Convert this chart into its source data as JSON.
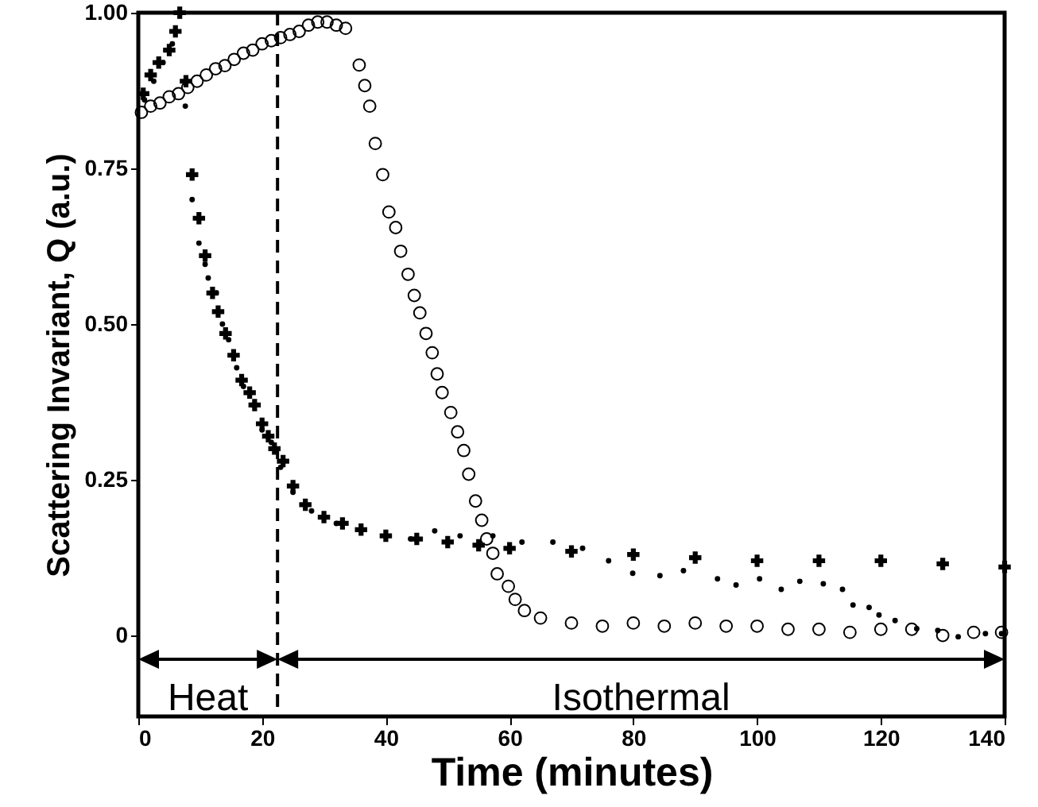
{
  "chart_data": {
    "type": "scatter",
    "xlabel": "Time (minutes)",
    "ylabel": "Scattering Invariant, Q (a.u.)",
    "xlim": [
      0,
      140
    ],
    "ylim": [
      -0.13,
      1.0
    ],
    "xticks": [
      0,
      20,
      40,
      60,
      80,
      100,
      120,
      140
    ],
    "yticks": [
      0,
      0.25,
      {
        "value": 0.5,
        "label": "0.50"
      },
      0.75,
      {
        "value": 1.0,
        "label": "1.00"
      }
    ],
    "grid": false,
    "series": [
      {
        "color": "#000000",
        "marker": "circle",
        "x": [
          0.5,
          2,
          3.5,
          5,
          6.5,
          8,
          9.5,
          11,
          12.5,
          14,
          15.5,
          17,
          18.5,
          20,
          21.5,
          23,
          24.5,
          26,
          27.5,
          29,
          30.5,
          32,
          33.5,
          35.7,
          36.6,
          37.4,
          38.3,
          39.5,
          40.5,
          41.6,
          42.4,
          43.6,
          44.6,
          45.5,
          46.5,
          47.5,
          48.3,
          49.1,
          50.5,
          51.6,
          52.6,
          53.4,
          54.5,
          55.5,
          56.3,
          57.3,
          58,
          59.8,
          60.9,
          62.4,
          65,
          70,
          75,
          80,
          85,
          90,
          95,
          100,
          105,
          110,
          115,
          120,
          125,
          130,
          135,
          139.5
        ],
        "values": [
          0.84,
          0.85,
          0.855,
          0.865,
          0.87,
          0.88,
          0.89,
          0.9,
          0.91,
          0.915,
          0.925,
          0.935,
          0.94,
          0.95,
          0.955,
          0.96,
          0.965,
          0.97,
          0.98,
          0.985,
          0.985,
          0.98,
          0.975,
          0.916,
          0.883,
          0.85,
          0.79,
          0.74,
          0.68,
          0.655,
          0.617,
          0.58,
          0.546,
          0.518,
          0.485,
          0.454,
          0.42,
          0.39,
          0.358,
          0.327,
          0.297,
          0.259,
          0.216,
          0.185,
          0.155,
          0.132,
          0.099,
          0.079,
          0.058,
          0.04,
          0.028,
          0.02,
          0.015,
          0.02,
          0.015,
          0.02,
          0.015,
          0.015,
          0.01,
          0.01,
          0.005,
          0.01,
          0.01,
          0.0,
          0.005,
          0.005
        ]
      },
      {
        "color": "#000000",
        "marker": "cross",
        "x": [
          0.8,
          2,
          3.3,
          5,
          6,
          6.7,
          7.7,
          8.7,
          9.8,
          10.8,
          12,
          12.9,
          14.1,
          15.4,
          16.7,
          18,
          18.8,
          20,
          21,
          22,
          23.4,
          25,
          27,
          30,
          33,
          36,
          40,
          45,
          50,
          55,
          60,
          70,
          80,
          90,
          100,
          110,
          120,
          130,
          140
        ],
        "values": [
          0.87,
          0.9,
          0.92,
          0.94,
          0.97,
          1.0,
          0.89,
          0.74,
          0.67,
          0.61,
          0.55,
          0.52,
          0.485,
          0.45,
          0.41,
          0.39,
          0.37,
          0.34,
          0.32,
          0.3,
          0.28,
          0.24,
          0.21,
          0.19,
          0.18,
          0.17,
          0.16,
          0.155,
          0.15,
          0.145,
          0.14,
          0.135,
          0.13,
          0.125,
          0.12,
          0.12,
          0.12,
          0.115,
          0.11
        ]
      },
      {
        "color": "#000000",
        "marker": "point",
        "x": [
          1,
          2.5,
          4,
          5.5,
          7.6,
          8.7,
          9.8,
          10.8,
          11.3,
          12.6,
          13.6,
          14.6,
          15.9,
          17,
          18.5,
          20,
          21.5,
          23,
          25,
          28,
          32,
          44,
          47.9,
          52,
          57.3,
          62,
          67,
          71.8,
          76,
          79.9,
          84.3,
          88.1,
          93.6,
          96.6,
          100.4,
          103.9,
          106.9,
          110.7,
          113.8,
          115.5,
          118.1,
          119.7,
          122.3,
          125.8,
          129.2,
          132.5,
          136.9,
          139.5
        ],
        "values": [
          0.86,
          0.89,
          0.92,
          0.95,
          0.85,
          0.7,
          0.63,
          0.596,
          0.574,
          0.55,
          0.5,
          0.475,
          0.43,
          0.4,
          0.37,
          0.33,
          0.31,
          0.27,
          0.23,
          0.2,
          0.18,
          0.155,
          0.168,
          0.16,
          0.16,
          0.15,
          0.15,
          0.14,
          0.12,
          0.1,
          0.096,
          0.104,
          0.091,
          0.081,
          0.091,
          0.074,
          0.087,
          0.083,
          0.074,
          0.049,
          0.045,
          0.033,
          0.024,
          0.011,
          0.008,
          -0.002,
          0.003,
          0.003
        ]
      }
    ],
    "ref_lines": [
      {
        "axis": "x",
        "value": 22.5,
        "line_style": "dashed",
        "color": "#000000"
      }
    ],
    "annotations": [
      "Heat",
      "Isothermal"
    ]
  }
}
